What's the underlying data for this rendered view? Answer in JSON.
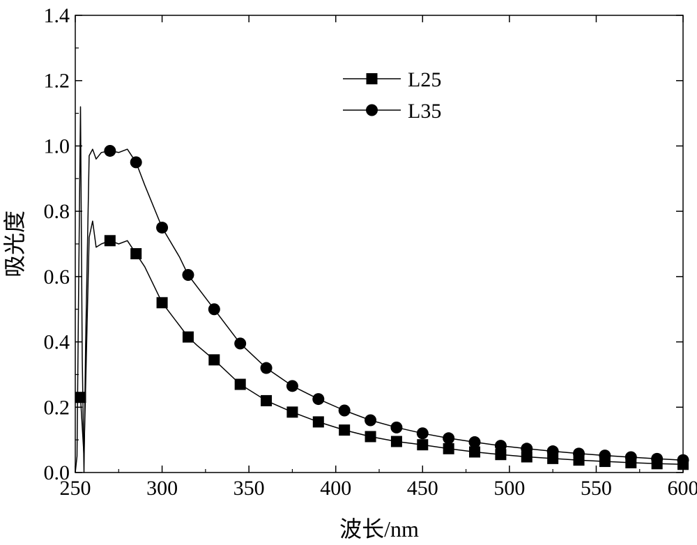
{
  "chart_data": {
    "type": "line",
    "xlabel": "波长/nm",
    "ylabel": "吸光度",
    "xlim": [
      250,
      600
    ],
    "ylim": [
      0.0,
      1.4
    ],
    "x_ticks": [
      "250",
      "300",
      "350",
      "400",
      "450",
      "500",
      "550",
      "600"
    ],
    "y_ticks": [
      "0.0",
      "0.2",
      "0.4",
      "0.6",
      "0.8",
      "1.0",
      "1.2",
      "1.4"
    ],
    "legend_position": "top-center",
    "grid": false,
    "series": [
      {
        "name": "L25",
        "marker": "square",
        "color": "#000000",
        "x": [
          253,
          255,
          258,
          260,
          262,
          265,
          270,
          275,
          280,
          285,
          290,
          300,
          310,
          315,
          320,
          330,
          345,
          360,
          375,
          390,
          405,
          420,
          435,
          450,
          465,
          480,
          495,
          510,
          525,
          540,
          555,
          570,
          585,
          600
        ],
        "y": [
          0.23,
          0.05,
          0.72,
          0.77,
          0.69,
          0.7,
          0.71,
          0.7,
          0.71,
          0.67,
          0.63,
          0.52,
          0.45,
          0.415,
          0.39,
          0.345,
          0.27,
          0.22,
          0.185,
          0.155,
          0.13,
          0.11,
          0.095,
          0.085,
          0.073,
          0.063,
          0.055,
          0.048,
          0.043,
          0.038,
          0.034,
          0.03,
          0.027,
          0.025
        ],
        "markers_x": [
          253,
          270,
          285,
          300,
          315,
          330,
          345,
          360,
          375,
          390,
          405,
          420,
          435,
          450,
          465,
          480,
          495,
          510,
          525,
          540,
          555,
          570,
          585,
          600
        ],
        "markers_y": [
          0.23,
          0.71,
          0.67,
          0.52,
          0.415,
          0.345,
          0.27,
          0.22,
          0.185,
          0.155,
          0.13,
          0.11,
          0.095,
          0.085,
          0.073,
          0.063,
          0.055,
          0.048,
          0.043,
          0.038,
          0.034,
          0.03,
          0.027,
          0.025
        ]
      },
      {
        "name": "L35",
        "marker": "circle",
        "color": "#000000",
        "x": [
          250,
          251,
          252,
          253,
          254,
          255,
          256,
          258,
          260,
          262,
          265,
          270,
          275,
          280,
          285,
          290,
          300,
          310,
          315,
          320,
          330,
          345,
          360,
          375,
          390,
          405,
          420,
          435,
          450,
          465,
          480,
          495,
          510,
          525,
          540,
          555,
          570,
          585,
          600
        ],
        "y": [
          0.0,
          0.05,
          0.6,
          1.12,
          0.35,
          0.0,
          0.4,
          0.97,
          0.99,
          0.96,
          0.98,
          0.985,
          0.98,
          0.99,
          0.95,
          0.88,
          0.75,
          0.66,
          0.605,
          0.57,
          0.5,
          0.395,
          0.32,
          0.265,
          0.225,
          0.19,
          0.16,
          0.138,
          0.12,
          0.105,
          0.093,
          0.082,
          0.073,
          0.065,
          0.058,
          0.052,
          0.047,
          0.042,
          0.038
        ],
        "markers_x": [
          270,
          285,
          300,
          315,
          330,
          345,
          360,
          375,
          390,
          405,
          420,
          435,
          450,
          465,
          480,
          495,
          510,
          525,
          540,
          555,
          570,
          585,
          600
        ],
        "markers_y": [
          0.985,
          0.95,
          0.75,
          0.605,
          0.5,
          0.395,
          0.32,
          0.265,
          0.225,
          0.19,
          0.16,
          0.138,
          0.12,
          0.105,
          0.093,
          0.082,
          0.073,
          0.065,
          0.058,
          0.052,
          0.047,
          0.042,
          0.038
        ]
      }
    ]
  }
}
